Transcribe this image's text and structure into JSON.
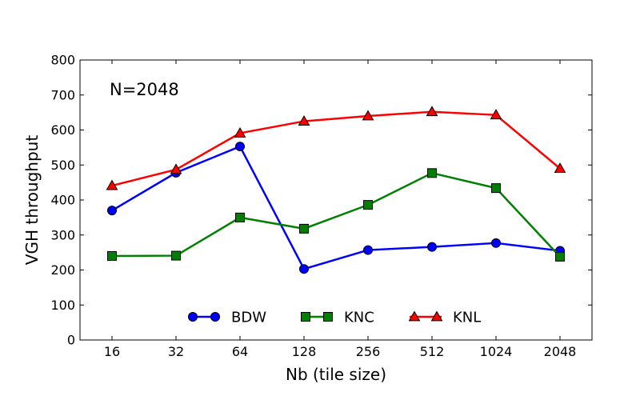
{
  "chart_data": {
    "type": "line",
    "title": "",
    "xlabel": "Nb (tile size)",
    "ylabel": "VGH throughput",
    "categories": [
      "16",
      "32",
      "64",
      "128",
      "256",
      "512",
      "1024",
      "2048"
    ],
    "ylim": [
      0,
      800
    ],
    "yticks": [
      0,
      100,
      200,
      300,
      400,
      500,
      600,
      700,
      800
    ],
    "annotation": "N=2048",
    "grid": false,
    "legend_position": "bottom-center",
    "series": [
      {
        "name": "BDW",
        "color": "#0000ff",
        "marker": "circle",
        "values": [
          370,
          478,
          553,
          203,
          257,
          266,
          277,
          255
        ]
      },
      {
        "name": "KNC",
        "color": "#008000",
        "marker": "square",
        "values": [
          240,
          241,
          350,
          318,
          386,
          477,
          434,
          238
        ]
      },
      {
        "name": "KNL",
        "color": "#ff0000",
        "marker": "triangle",
        "values": [
          441,
          487,
          591,
          625,
          640,
          652,
          643,
          490
        ]
      }
    ]
  }
}
